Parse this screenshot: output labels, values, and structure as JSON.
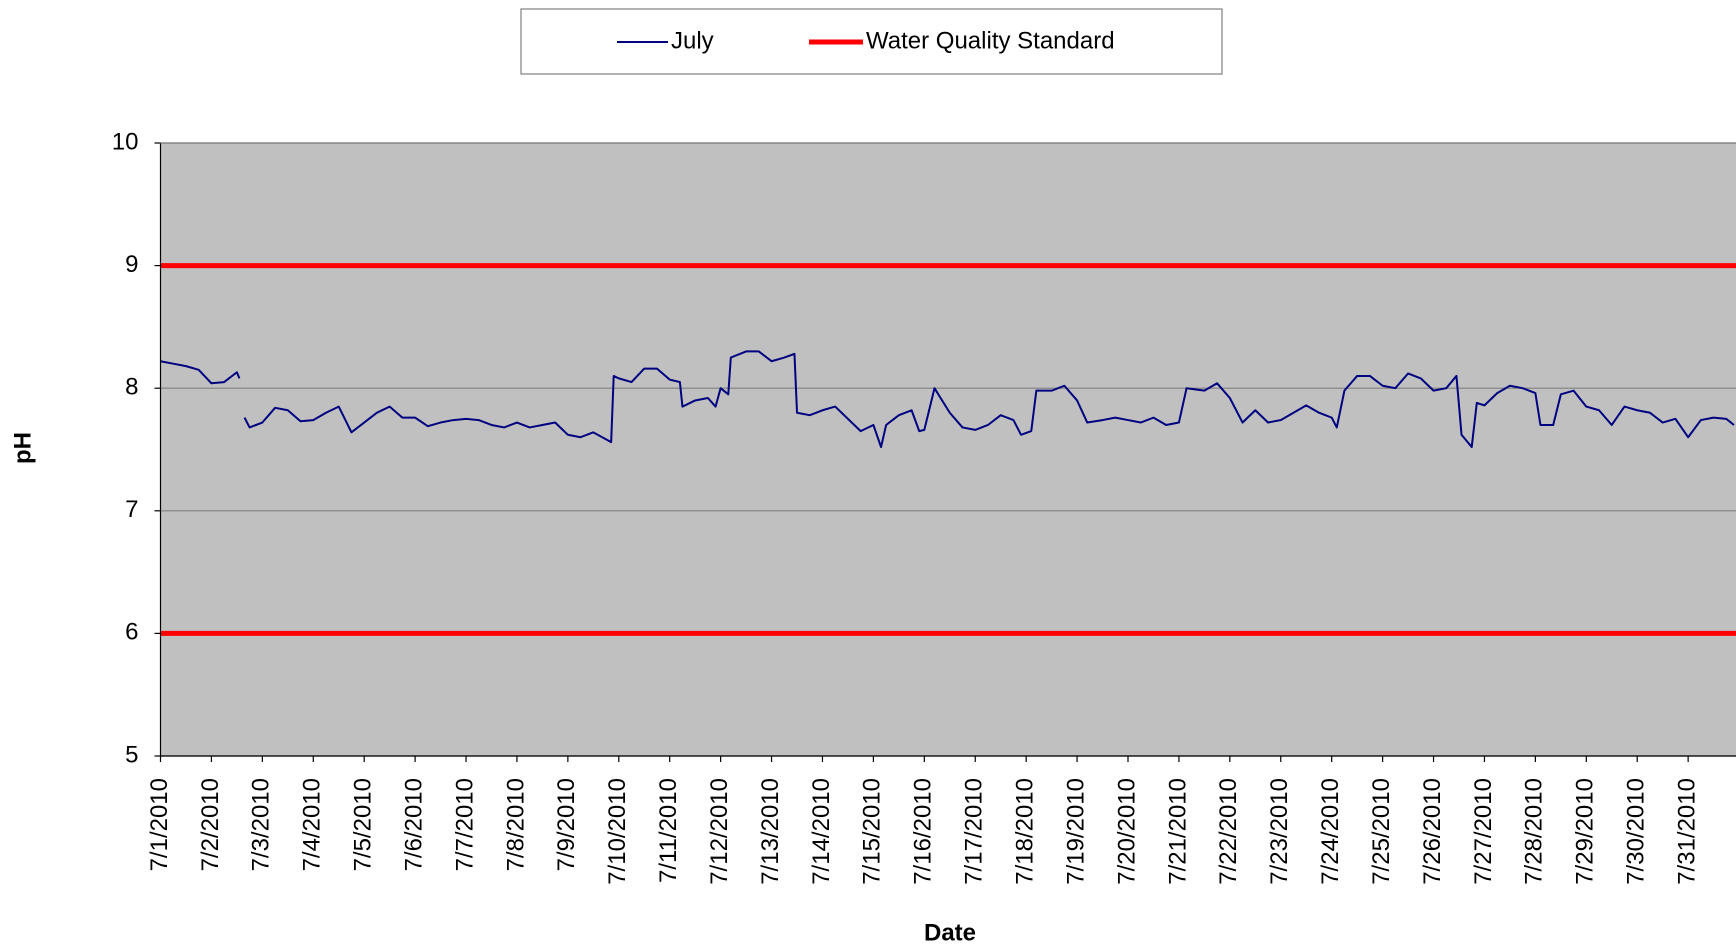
{
  "chart_data": {
    "type": "line",
    "x_label": "Date",
    "y_label": "pH",
    "xlim": [
      1,
      31.94
    ],
    "ylim": [
      5,
      10
    ],
    "yticks": [
      5,
      6,
      7,
      8,
      9,
      10
    ],
    "xticks": [
      {
        "value": 1,
        "label": "7/1/2010"
      },
      {
        "value": 2,
        "label": "7/2/2010"
      },
      {
        "value": 3,
        "label": "7/3/2010"
      },
      {
        "value": 4,
        "label": "7/4/2010"
      },
      {
        "value": 5,
        "label": "7/5/2010"
      },
      {
        "value": 6,
        "label": "7/6/2010"
      },
      {
        "value": 7,
        "label": "7/7/2010"
      },
      {
        "value": 8,
        "label": "7/8/2010"
      },
      {
        "value": 9,
        "label": "7/9/2010"
      },
      {
        "value": 10,
        "label": "7/10/2010"
      },
      {
        "value": 11,
        "label": "7/11/2010"
      },
      {
        "value": 12,
        "label": "7/12/2010"
      },
      {
        "value": 13,
        "label": "7/13/2010"
      },
      {
        "value": 14,
        "label": "7/14/2010"
      },
      {
        "value": 15,
        "label": "7/15/2010"
      },
      {
        "value": 16,
        "label": "7/16/2010"
      },
      {
        "value": 17,
        "label": "7/17/2010"
      },
      {
        "value": 18,
        "label": "7/18/2010"
      },
      {
        "value": 19,
        "label": "7/19/2010"
      },
      {
        "value": 20,
        "label": "7/20/2010"
      },
      {
        "value": 21,
        "label": "7/21/2010"
      },
      {
        "value": 22,
        "label": "7/22/2010"
      },
      {
        "value": 23,
        "label": "7/23/2010"
      },
      {
        "value": 24,
        "label": "7/24/2010"
      },
      {
        "value": 25,
        "label": "7/25/2010"
      },
      {
        "value": 26,
        "label": "7/26/2010"
      },
      {
        "value": 27,
        "label": "7/27/2010"
      },
      {
        "value": 28,
        "label": "7/28/2010"
      },
      {
        "value": 29,
        "label": "7/29/2010"
      },
      {
        "value": 30,
        "label": "7/30/2010"
      },
      {
        "value": 31,
        "label": "7/31/2010"
      }
    ],
    "grid": true,
    "background": "#c0c0c0",
    "legend": "top",
    "series": [
      {
        "name": "July",
        "color": "#000080",
        "x": [
          1.0,
          1.25,
          1.5,
          1.75,
          2.0,
          2.25,
          2.5,
          2.55,
          2.6,
          2.65,
          2.75,
          3.0,
          3.25,
          3.5,
          3.75,
          4.0,
          4.25,
          4.5,
          4.75,
          5.0,
          5.25,
          5.5,
          5.75,
          6.0,
          6.25,
          6.5,
          6.75,
          7.0,
          7.25,
          7.5,
          7.75,
          8.0,
          8.25,
          8.5,
          8.75,
          9.0,
          9.25,
          9.5,
          9.85,
          9.9,
          10.0,
          10.25,
          10.5,
          10.75,
          11.0,
          11.2,
          11.25,
          11.5,
          11.75,
          11.9,
          12.0,
          12.15,
          12.2,
          12.5,
          12.75,
          13.0,
          13.25,
          13.45,
          13.5,
          13.75,
          14.0,
          14.25,
          14.5,
          14.75,
          15.0,
          15.15,
          15.25,
          15.5,
          15.75,
          15.9,
          16.0,
          16.2,
          16.5,
          16.75,
          17.0,
          17.25,
          17.5,
          17.75,
          17.9,
          18.1,
          18.2,
          18.5,
          18.75,
          19.0,
          19.2,
          19.5,
          19.75,
          20.0,
          20.25,
          20.5,
          20.75,
          21.0,
          21.15,
          21.5,
          21.75,
          22.0,
          22.25,
          22.5,
          22.75,
          23.0,
          23.25,
          23.5,
          23.75,
          24.0,
          24.1,
          24.25,
          24.5,
          24.75,
          25.0,
          25.25,
          25.5,
          25.75,
          26.0,
          26.25,
          26.45,
          26.55,
          26.75,
          26.85,
          27.0,
          27.25,
          27.5,
          27.75,
          28.0,
          28.1,
          28.35,
          28.5,
          28.75,
          29.0,
          29.25,
          29.5,
          29.75,
          30.0,
          30.25,
          30.5,
          30.75,
          31.0,
          31.25,
          31.5,
          31.75,
          31.9
        ],
        "values": [
          8.22,
          8.2,
          8.18,
          8.15,
          8.04,
          8.05,
          8.13,
          8.08,
          null,
          7.76,
          7.68,
          7.72,
          7.84,
          7.82,
          7.73,
          7.74,
          7.8,
          7.85,
          7.64,
          7.72,
          7.8,
          7.85,
          7.76,
          7.76,
          7.69,
          7.72,
          7.74,
          7.75,
          7.74,
          7.7,
          7.68,
          7.72,
          7.68,
          7.7,
          7.72,
          7.62,
          7.6,
          7.64,
          7.56,
          8.1,
          8.08,
          8.05,
          8.16,
          8.16,
          8.07,
          8.05,
          7.85,
          7.9,
          7.92,
          7.85,
          8.0,
          7.95,
          8.25,
          8.3,
          8.3,
          8.22,
          8.25,
          8.28,
          7.8,
          7.78,
          7.82,
          7.85,
          7.75,
          7.65,
          7.7,
          7.52,
          7.7,
          7.78,
          7.82,
          7.65,
          7.66,
          8.0,
          7.8,
          7.68,
          7.66,
          7.7,
          7.78,
          7.74,
          7.62,
          7.65,
          7.98,
          7.98,
          8.02,
          7.9,
          7.72,
          7.74,
          7.76,
          7.74,
          7.72,
          7.76,
          7.7,
          7.72,
          8.0,
          7.98,
          8.04,
          7.92,
          7.72,
          7.82,
          7.72,
          7.74,
          7.8,
          7.86,
          7.8,
          7.76,
          7.68,
          7.98,
          8.1,
          8.1,
          8.02,
          8.0,
          8.12,
          8.08,
          7.98,
          8.0,
          8.1,
          7.62,
          7.52,
          7.88,
          7.86,
          7.96,
          8.02,
          8.0,
          7.96,
          7.7,
          7.7,
          7.95,
          7.98,
          7.85,
          7.82,
          7.7,
          7.85,
          7.82,
          7.8,
          7.72,
          7.75,
          7.6,
          7.74,
          7.76,
          7.75,
          7.7
        ]
      },
      {
        "name": "Water Quality Standard",
        "color": "#ff0000",
        "values": [
          9,
          6
        ]
      }
    ]
  }
}
